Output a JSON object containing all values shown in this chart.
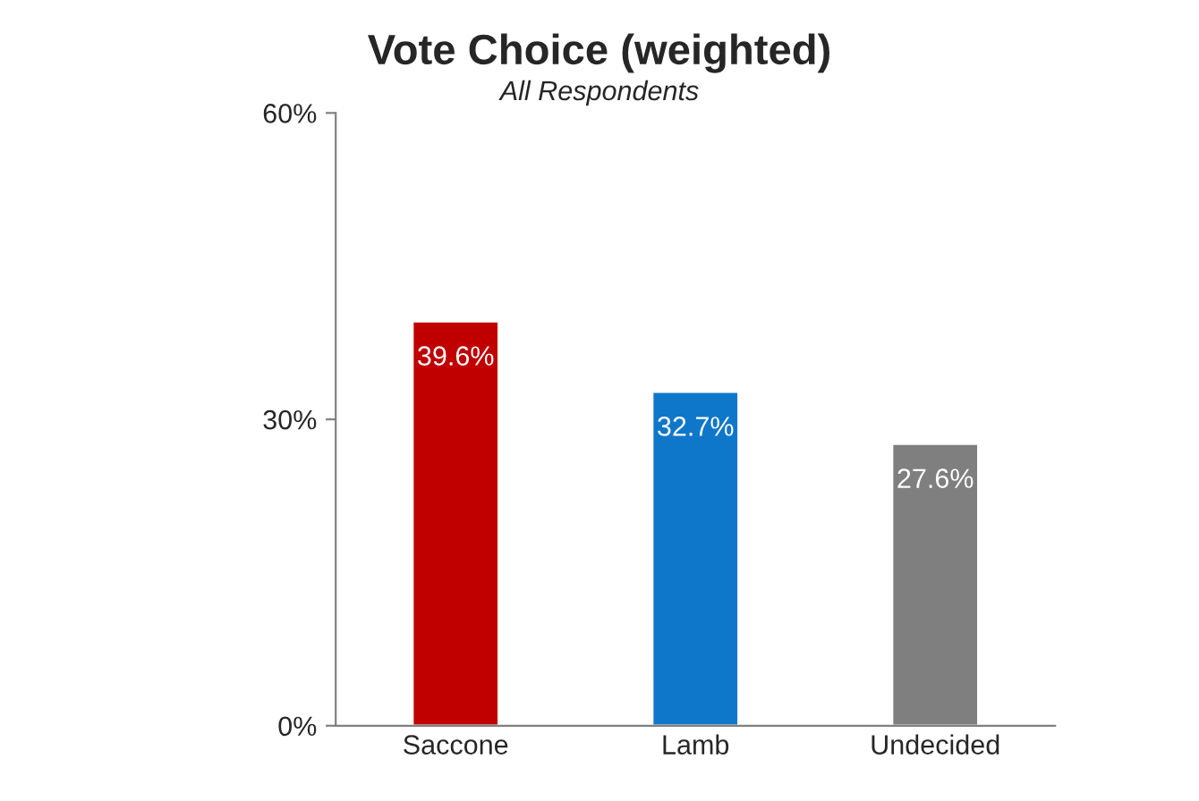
{
  "chart_data": {
    "type": "bar",
    "title": "Vote Choice (weighted)",
    "subtitle": "All Respondents",
    "categories": [
      "Saccone",
      "Lamb",
      "Undecided"
    ],
    "values": [
      39.6,
      32.7,
      27.6
    ],
    "colors": [
      "#c00000",
      "#0f77c9",
      "#7f7f7f"
    ],
    "value_labels": [
      "39.6%",
      "32.7%",
      "27.6%"
    ],
    "ylim": [
      0,
      60
    ],
    "yticks": [
      {
        "value": 0,
        "label": "0%"
      },
      {
        "value": 30,
        "label": "30%"
      },
      {
        "value": 60,
        "label": "60%"
      }
    ],
    "grid": false,
    "legend": false
  }
}
